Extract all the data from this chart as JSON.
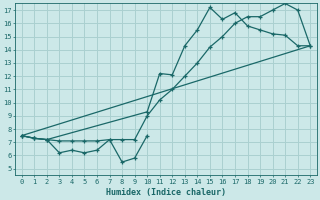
{
  "xlabel": "Humidex (Indice chaleur)",
  "bg_color": "#cce8e8",
  "grid_color": "#aad0d0",
  "line_color": "#1a6868",
  "xlim": [
    -0.5,
    23.5
  ],
  "ylim": [
    4.5,
    17.5
  ],
  "xticks": [
    0,
    1,
    2,
    3,
    4,
    5,
    6,
    7,
    8,
    9,
    10,
    11,
    12,
    13,
    14,
    15,
    16,
    17,
    18,
    19,
    20,
    21,
    22,
    23
  ],
  "yticks": [
    5,
    6,
    7,
    8,
    9,
    10,
    11,
    12,
    13,
    14,
    15,
    16,
    17
  ],
  "line1_x": [
    0,
    1,
    2,
    3,
    4,
    5,
    6,
    7,
    8,
    9,
    10
  ],
  "line1_y": [
    7.5,
    7.3,
    7.2,
    6.2,
    6.4,
    6.2,
    6.4,
    7.2,
    5.5,
    5.8,
    7.5
  ],
  "line2_x": [
    0,
    1,
    2,
    10,
    11,
    12,
    13,
    14,
    15,
    16,
    17,
    18,
    19,
    20,
    21,
    22,
    23
  ],
  "line2_y": [
    7.5,
    7.3,
    7.2,
    9.3,
    12.2,
    12.1,
    14.3,
    15.5,
    17.2,
    16.3,
    16.8,
    15.8,
    15.5,
    15.2,
    15.1,
    14.3,
    14.3
  ],
  "line3_x": [
    0,
    1,
    2,
    3,
    4,
    5,
    6,
    7,
    8,
    9,
    10,
    11,
    12,
    13,
    14,
    15,
    16,
    17,
    18,
    19,
    20,
    21,
    22,
    23
  ],
  "line3_y": [
    7.5,
    7.3,
    7.2,
    7.1,
    7.1,
    7.1,
    7.1,
    7.2,
    7.2,
    7.2,
    9.0,
    10.2,
    11.0,
    12.0,
    13.0,
    14.2,
    15.0,
    16.0,
    16.5,
    16.5,
    17.0,
    17.5,
    17.0,
    14.3
  ],
  "line4_x": [
    0,
    23
  ],
  "line4_y": [
    7.5,
    14.3
  ]
}
